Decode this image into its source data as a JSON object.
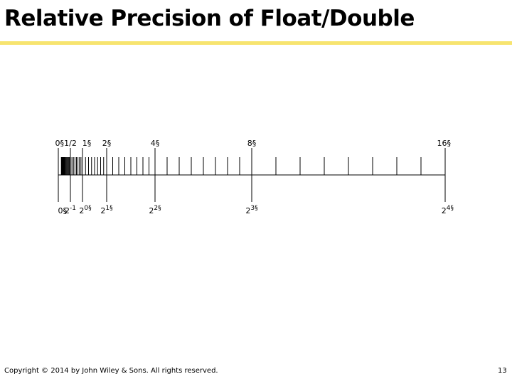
{
  "slide": {
    "title": "Relative Precision of Float/Double",
    "footer": "Copyright © 2014 by John Wiley & Sons.  All rights reserved.",
    "page_number": "13",
    "accent_color": "#f7e46f"
  },
  "diagram": {
    "top_labels": [
      {
        "text": "0§",
        "value": 0
      },
      {
        "text": "1/2",
        "value": 0.5
      },
      {
        "text": "1§",
        "value": 1
      },
      {
        "text": "2§",
        "value": 2
      },
      {
        "text": "4§",
        "value": 4
      },
      {
        "text": "8§",
        "value": 8
      },
      {
        "text": "16§",
        "value": 16
      }
    ],
    "bottom_labels": [
      {
        "base": "0§",
        "exp": "",
        "value": 0
      },
      {
        "base": "2",
        "exp": "-1",
        "value": 0.5
      },
      {
        "base": "2",
        "exp": "0§",
        "value": 1
      },
      {
        "base": "2",
        "exp": "1§",
        "value": 2
      },
      {
        "base": "2",
        "exp": "2§",
        "value": 4
      },
      {
        "base": "2",
        "exp": "3§",
        "value": 8
      },
      {
        "base": "2",
        "exp": "4§",
        "value": 16
      }
    ]
  }
}
